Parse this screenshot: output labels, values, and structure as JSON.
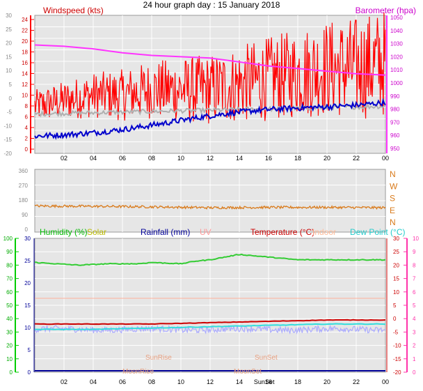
{
  "title": "24 hour graph day : 15 January 2018",
  "colors": {
    "plot_bg": "#e6e6e6",
    "grid": "#ffffff",
    "wind": "#ff0000",
    "avg_wind": "#b0b0b0",
    "baro": "#ff33ff",
    "outdoor_temp_line": "#0000cc",
    "winddir": "#d97a1a",
    "humidity": "#33cc33",
    "solar": "#cccc00",
    "rainfall": "#000099",
    "uv": "#ff9999",
    "temperature": "#cc0000",
    "indoor": "#ffccaa",
    "dewpoint": "#33dddd",
    "rain_trace": "#aaaaff",
    "sun_text": "#e8a080",
    "left_axis_green": "#00cc00",
    "right_axis_pink": "#ff33aa"
  },
  "x_ticks": [
    "02",
    "04",
    "06",
    "08",
    "10",
    "12",
    "14",
    "16",
    "18",
    "20",
    "22",
    "00"
  ],
  "top_panel": {
    "left_label": "Windspeed (kts)",
    "right_label": "Barometer (hpa)",
    "outer_left_ticks": [
      "30",
      "25",
      "20",
      "15",
      "10",
      "5",
      "0",
      "-5",
      "-10",
      "-15",
      "-20"
    ],
    "inner_left_ticks": [
      "24",
      "22",
      "20",
      "18",
      "16",
      "14",
      "12",
      "10",
      "8",
      "6",
      "4",
      "2",
      "0"
    ],
    "right_ticks": [
      "1050",
      "1040",
      "1030",
      "1020",
      "1010",
      "1000",
      "990",
      "980",
      "970",
      "960",
      "950"
    ]
  },
  "mid_panel": {
    "left_ticks": [
      "360",
      "270",
      "180",
      "90",
      "0"
    ],
    "right_labels": [
      "N",
      "W",
      "S",
      "E",
      "N"
    ]
  },
  "bottom_panel": {
    "legend": {
      "humidity": "Humidity  (%)",
      "solar": "Solar",
      "rainfall": "Rainfall (mm)",
      "uv": "UV",
      "temperature": "Temperature (°C)",
      "indoor": "Indoor",
      "dewpoint": "Dew Point (°C)"
    },
    "outer_left_ticks": [
      "100",
      "90",
      "80",
      "70",
      "60",
      "50",
      "40",
      "30",
      "20",
      "10",
      "0"
    ],
    "inner_left_ticks": [
      "30",
      "25",
      "20",
      "15",
      "10",
      "5",
      "0"
    ],
    "right_ticks_temp": [
      "30",
      "25",
      "20",
      "15",
      "10",
      "5",
      "0",
      "-5",
      "-10",
      "-15",
      "-20"
    ],
    "right_ticks_uv": [
      "10",
      "9",
      "8",
      "7",
      "6",
      "5",
      "4",
      "3",
      "2",
      "1",
      "0"
    ],
    "annotations": {
      "sunrise": "SunRise",
      "sunset": "SunSet",
      "moonrise": "MoonRise",
      "moonset": "MoonSet"
    },
    "x_sunset_label": "SunSet"
  },
  "chart_data": [
    {
      "type": "line",
      "title": "24 hour graph day : 15 January 2018",
      "xlabel": "",
      "x_ticks": [
        "02",
        "04",
        "06",
        "08",
        "10",
        "12",
        "14",
        "16",
        "18",
        "20",
        "22",
        "00"
      ],
      "ylabel": "Windspeed (kts)",
      "y2label": "Barometer (hpa)",
      "ylim": [
        0,
        25
      ],
      "y2lim": [
        950,
        1050
      ],
      "series": [
        {
          "name": "Windspeed (kts)",
          "x": [
            0,
            2,
            4,
            6,
            8,
            10,
            12,
            14,
            16,
            18,
            20,
            22,
            24
          ],
          "values": [
            8,
            9,
            10,
            10,
            11,
            11,
            11,
            12,
            13,
            14,
            15,
            15,
            16
          ]
        },
        {
          "name": "Barometer (hpa)",
          "x": [
            0,
            2,
            4,
            6,
            8,
            10,
            12,
            14,
            16,
            18,
            20,
            22,
            24
          ],
          "values": [
            1029,
            1028,
            1026,
            1023,
            1021,
            1020,
            1019,
            1016,
            1013,
            1011,
            1009,
            1007,
            1006
          ]
        }
      ]
    },
    {
      "type": "line",
      "x_ticks": [
        "02",
        "04",
        "06",
        "08",
        "10",
        "12",
        "14",
        "16",
        "18",
        "20",
        "22",
        "00"
      ],
      "ylim": [
        0,
        360
      ],
      "series": [
        {
          "name": "Wind direction",
          "x": [
            0,
            4,
            8,
            12,
            16,
            20,
            24
          ],
          "values": [
            150,
            148,
            145,
            140,
            142,
            142,
            140
          ]
        }
      ]
    },
    {
      "type": "line",
      "x_ticks": [
        "02",
        "04",
        "06",
        "08",
        "10",
        "12",
        "14",
        "16",
        "18",
        "20",
        "22",
        "00"
      ],
      "ylim": [
        0,
        100
      ],
      "series": [
        {
          "name": "Humidity  (%)",
          "x": [
            0,
            1.5,
            3,
            5,
            7,
            8,
            10,
            11,
            12,
            13,
            14,
            15,
            16,
            17,
            18,
            20,
            22,
            24
          ],
          "values": [
            82,
            81,
            80,
            81,
            81,
            82,
            81,
            83,
            84,
            86,
            88,
            87,
            86,
            85,
            84,
            84,
            84,
            84
          ]
        },
        {
          "name": "Temperature (°C)",
          "x": [
            0,
            4,
            8,
            12,
            16,
            20,
            24
          ],
          "values": [
            -2,
            -2,
            -2,
            -1.5,
            -1,
            -0.5,
            -0.5
          ]
        },
        {
          "name": "Dew Point (°C)",
          "x": [
            0,
            4,
            8,
            12,
            16,
            20,
            24
          ],
          "values": [
            -4,
            -4,
            -3.5,
            -3,
            -2.5,
            -2,
            -2
          ]
        },
        {
          "name": "Rainfall (mm)",
          "x": [
            0,
            4,
            8,
            12,
            16,
            20,
            24
          ],
          "values": [
            0,
            0,
            0,
            0,
            0,
            0,
            0
          ]
        }
      ]
    }
  ]
}
